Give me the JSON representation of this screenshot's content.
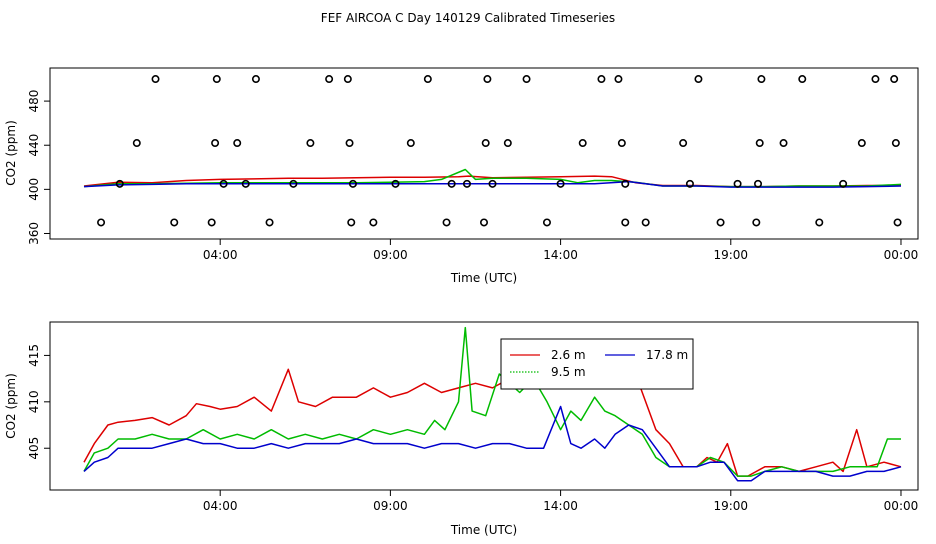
{
  "title": "FEF AIRCOA C  Day 140129  Calibrated Timeseries",
  "chart_data": [
    {
      "id": "top",
      "type": "line+scatter",
      "xlabel": "Time (UTC)",
      "ylabel": "CO2 (ppm)",
      "xlim": [
        -1.0,
        24.5
      ],
      "ylim": [
        355,
        510
      ],
      "xticks": [
        4,
        9,
        14,
        19,
        24
      ],
      "xtick_labels": [
        "04:00",
        "09:00",
        "14:00",
        "19:00",
        "00:00"
      ],
      "yticks": [
        360,
        400,
        440,
        480
      ],
      "ytick_labels": [
        "360",
        "400",
        "440",
        "480"
      ],
      "series": [
        {
          "name": "2.6 m",
          "color": "#dd0000",
          "x": [
            0.0,
            1.0,
            2.0,
            3.0,
            4.0,
            5.0,
            6.0,
            7.0,
            8.0,
            9.0,
            10.0,
            11.0,
            11.3,
            12.0,
            13.0,
            14.0,
            15.0,
            15.5,
            16.2,
            17.0,
            18.0,
            19.0,
            20.0,
            21.0,
            22.0,
            23.0,
            24.0
          ],
          "y": [
            403,
            406.5,
            406,
            408,
            409,
            409.5,
            410,
            410,
            410.5,
            411,
            411,
            411.5,
            412,
            410.5,
            411,
            411.5,
            412,
            411.5,
            406,
            403.5,
            403.5,
            402.5,
            402.5,
            403,
            403,
            403.5,
            403.5
          ]
        },
        {
          "name": "9.5 m",
          "color": "#00bb00",
          "x": [
            0.0,
            1.0,
            2.0,
            3.0,
            4.0,
            5.0,
            6.0,
            7.0,
            8.0,
            9.0,
            10.0,
            10.5,
            11.2,
            11.5,
            12.0,
            13.0,
            14.0,
            14.5,
            15.0,
            15.5,
            16.2,
            17.0,
            18.0,
            19.0,
            20.0,
            21.0,
            22.0,
            23.0,
            24.0
          ],
          "y": [
            402.5,
            405,
            405,
            405.5,
            406,
            406,
            406,
            406,
            406,
            406.5,
            407,
            409,
            418,
            409,
            410,
            410,
            409,
            406,
            408,
            408,
            406.5,
            403,
            403,
            402.5,
            402.5,
            403,
            403,
            403,
            404.5
          ]
        },
        {
          "name": "17.8 m",
          "color": "#0000cc",
          "x": [
            0.0,
            1.0,
            2.0,
            3.0,
            4.0,
            5.0,
            6.0,
            7.0,
            8.0,
            9.0,
            10.0,
            11.0,
            12.0,
            13.0,
            14.0,
            15.0,
            16.0,
            17.0,
            18.0,
            19.0,
            20.0,
            21.0,
            22.0,
            23.0,
            24.0
          ],
          "y": [
            402.5,
            404,
            404.5,
            405,
            405,
            405,
            405,
            405,
            405,
            405,
            405,
            405,
            405,
            405,
            405,
            405,
            407,
            403,
            403,
            402,
            402,
            402,
            402,
            402.5,
            403
          ]
        }
      ],
      "flags": {
        "y500": [
          2.1,
          3.9,
          5.05,
          7.2,
          7.75,
          10.1,
          11.85,
          13.0,
          15.2,
          15.7,
          18.05,
          19.9,
          21.1,
          23.25,
          23.8
        ],
        "y442": [
          1.55,
          3.85,
          4.5,
          6.65,
          7.8,
          9.6,
          11.8,
          12.45,
          14.65,
          15.8,
          17.6,
          19.85,
          20.55,
          22.85,
          23.85
        ],
        "y405": [
          1.05,
          4.1,
          4.75,
          6.15,
          7.9,
          9.15,
          10.8,
          11.25,
          12.0,
          14.0,
          15.9,
          17.8,
          19.2,
          19.8,
          22.3
        ],
        "y370": [
          0.5,
          2.65,
          3.75,
          5.45,
          7.85,
          8.5,
          10.65,
          11.75,
          13.6,
          15.9,
          16.5,
          18.7,
          19.75,
          21.6,
          23.9
        ]
      }
    },
    {
      "id": "bottom",
      "type": "line",
      "xlabel": "Time (UTC)",
      "ylabel": "CO2 (ppm)",
      "xlim": [
        -1.0,
        24.5
      ],
      "ylim": [
        400.5,
        418.6
      ],
      "xticks": [
        4,
        9,
        14,
        19,
        24
      ],
      "xtick_labels": [
        "04:00",
        "09:00",
        "14:00",
        "19:00",
        "00:00"
      ],
      "yticks": [
        405,
        410,
        415
      ],
      "ytick_labels": [
        "405",
        "410",
        "415"
      ],
      "legend": {
        "placement": "top-center",
        "entries": [
          "2.6 m",
          "9.5 m",
          "17.8 m"
        ]
      },
      "series": [
        {
          "name": "2.6 m",
          "color": "#dd0000",
          "x": [
            0.0,
            0.3,
            0.7,
            1.0,
            1.5,
            2.0,
            2.5,
            3.0,
            3.3,
            3.7,
            4.0,
            4.5,
            5.0,
            5.5,
            6.0,
            6.3,
            6.8,
            7.3,
            8.0,
            8.5,
            9.0,
            9.5,
            10.0,
            10.5,
            11.0,
            11.5,
            12.0,
            12.5,
            12.8,
            13.2,
            13.7,
            14.0,
            14.5,
            15.0,
            15.3,
            15.6,
            16.2,
            16.8,
            17.2,
            17.6,
            18.0,
            18.3,
            18.6,
            18.9,
            19.2,
            19.5,
            20.0,
            20.5,
            21.0,
            21.5,
            22.0,
            22.3,
            22.7,
            23.0,
            23.5,
            24.0
          ],
          "y": [
            403.5,
            405.5,
            407.5,
            407.8,
            408,
            408.3,
            407.5,
            408.5,
            409.8,
            409.5,
            409.2,
            409.5,
            410.5,
            409,
            413.5,
            410,
            409.5,
            410.5,
            410.5,
            411.5,
            410.5,
            411,
            412,
            411,
            411.5,
            412,
            411.5,
            412.5,
            415.5,
            413,
            411.5,
            412,
            413,
            411.5,
            414.5,
            413,
            413,
            407,
            405.5,
            403,
            403,
            404,
            403.5,
            405.5,
            402,
            402,
            403,
            403,
            402.5,
            403,
            403.5,
            402.5,
            407,
            403,
            403.5,
            403
          ]
        },
        {
          "name": "9.5 m",
          "color": "#00bb00",
          "x": [
            0.0,
            0.3,
            0.7,
            1.0,
            1.5,
            2.0,
            2.5,
            3.0,
            3.5,
            4.0,
            4.5,
            5.0,
            5.5,
            6.0,
            6.5,
            7.0,
            7.5,
            8.0,
            8.5,
            9.0,
            9.5,
            10.0,
            10.3,
            10.6,
            11.0,
            11.2,
            11.4,
            11.8,
            12.2,
            12.5,
            12.8,
            13.2,
            13.6,
            14.0,
            14.3,
            14.6,
            15.0,
            15.3,
            15.6,
            16.0,
            16.4,
            16.8,
            17.2,
            17.6,
            18.0,
            18.4,
            18.8,
            19.2,
            19.6,
            20.0,
            20.5,
            21.0,
            21.5,
            22.0,
            22.5,
            23.0,
            23.3,
            23.6,
            24.0
          ],
          "y": [
            402.5,
            404.5,
            405,
            406,
            406,
            406.5,
            406,
            406,
            407,
            406,
            406.5,
            406,
            407,
            406,
            406.5,
            406,
            406.5,
            406,
            407,
            406.5,
            407,
            406.5,
            408,
            407,
            410,
            418,
            409,
            408.5,
            413,
            412,
            411,
            412.5,
            410,
            407,
            409,
            408,
            410.5,
            409,
            408.5,
            407.5,
            406.5,
            404,
            403,
            403,
            403,
            404,
            403.5,
            402,
            402,
            402.5,
            403,
            402.5,
            402.5,
            402.5,
            403,
            403,
            403,
            406,
            406
          ]
        },
        {
          "name": "17.8 m",
          "color": "#0000cc",
          "x": [
            0.0,
            0.3,
            0.7,
            1.0,
            1.5,
            2.0,
            2.5,
            3.0,
            3.5,
            4.0,
            4.5,
            5.0,
            5.5,
            6.0,
            6.5,
            7.0,
            7.5,
            8.0,
            8.5,
            9.0,
            9.5,
            10.0,
            10.5,
            11.0,
            11.5,
            12.0,
            12.5,
            13.0,
            13.5,
            14.0,
            14.3,
            14.6,
            15.0,
            15.3,
            15.6,
            16.0,
            16.4,
            16.8,
            17.2,
            17.6,
            18.0,
            18.4,
            18.8,
            19.2,
            19.6,
            20.0,
            20.5,
            21.0,
            21.5,
            22.0,
            22.5,
            23.0,
            23.5,
            24.0
          ],
          "y": [
            402.5,
            403.5,
            404,
            405,
            405,
            405,
            405.5,
            406,
            405.5,
            405.5,
            405,
            405,
            405.5,
            405,
            405.5,
            405.5,
            405.5,
            406,
            405.5,
            405.5,
            405.5,
            405,
            405.5,
            405.5,
            405,
            405.5,
            405.5,
            405,
            405,
            409.5,
            405.5,
            405,
            406,
            405,
            406.5,
            407.5,
            407,
            405,
            403,
            403,
            403,
            403.5,
            403.5,
            401.5,
            401.5,
            402.5,
            402.5,
            402.5,
            402.5,
            402,
            402,
            402.5,
            402.5,
            403
          ]
        }
      ]
    }
  ]
}
